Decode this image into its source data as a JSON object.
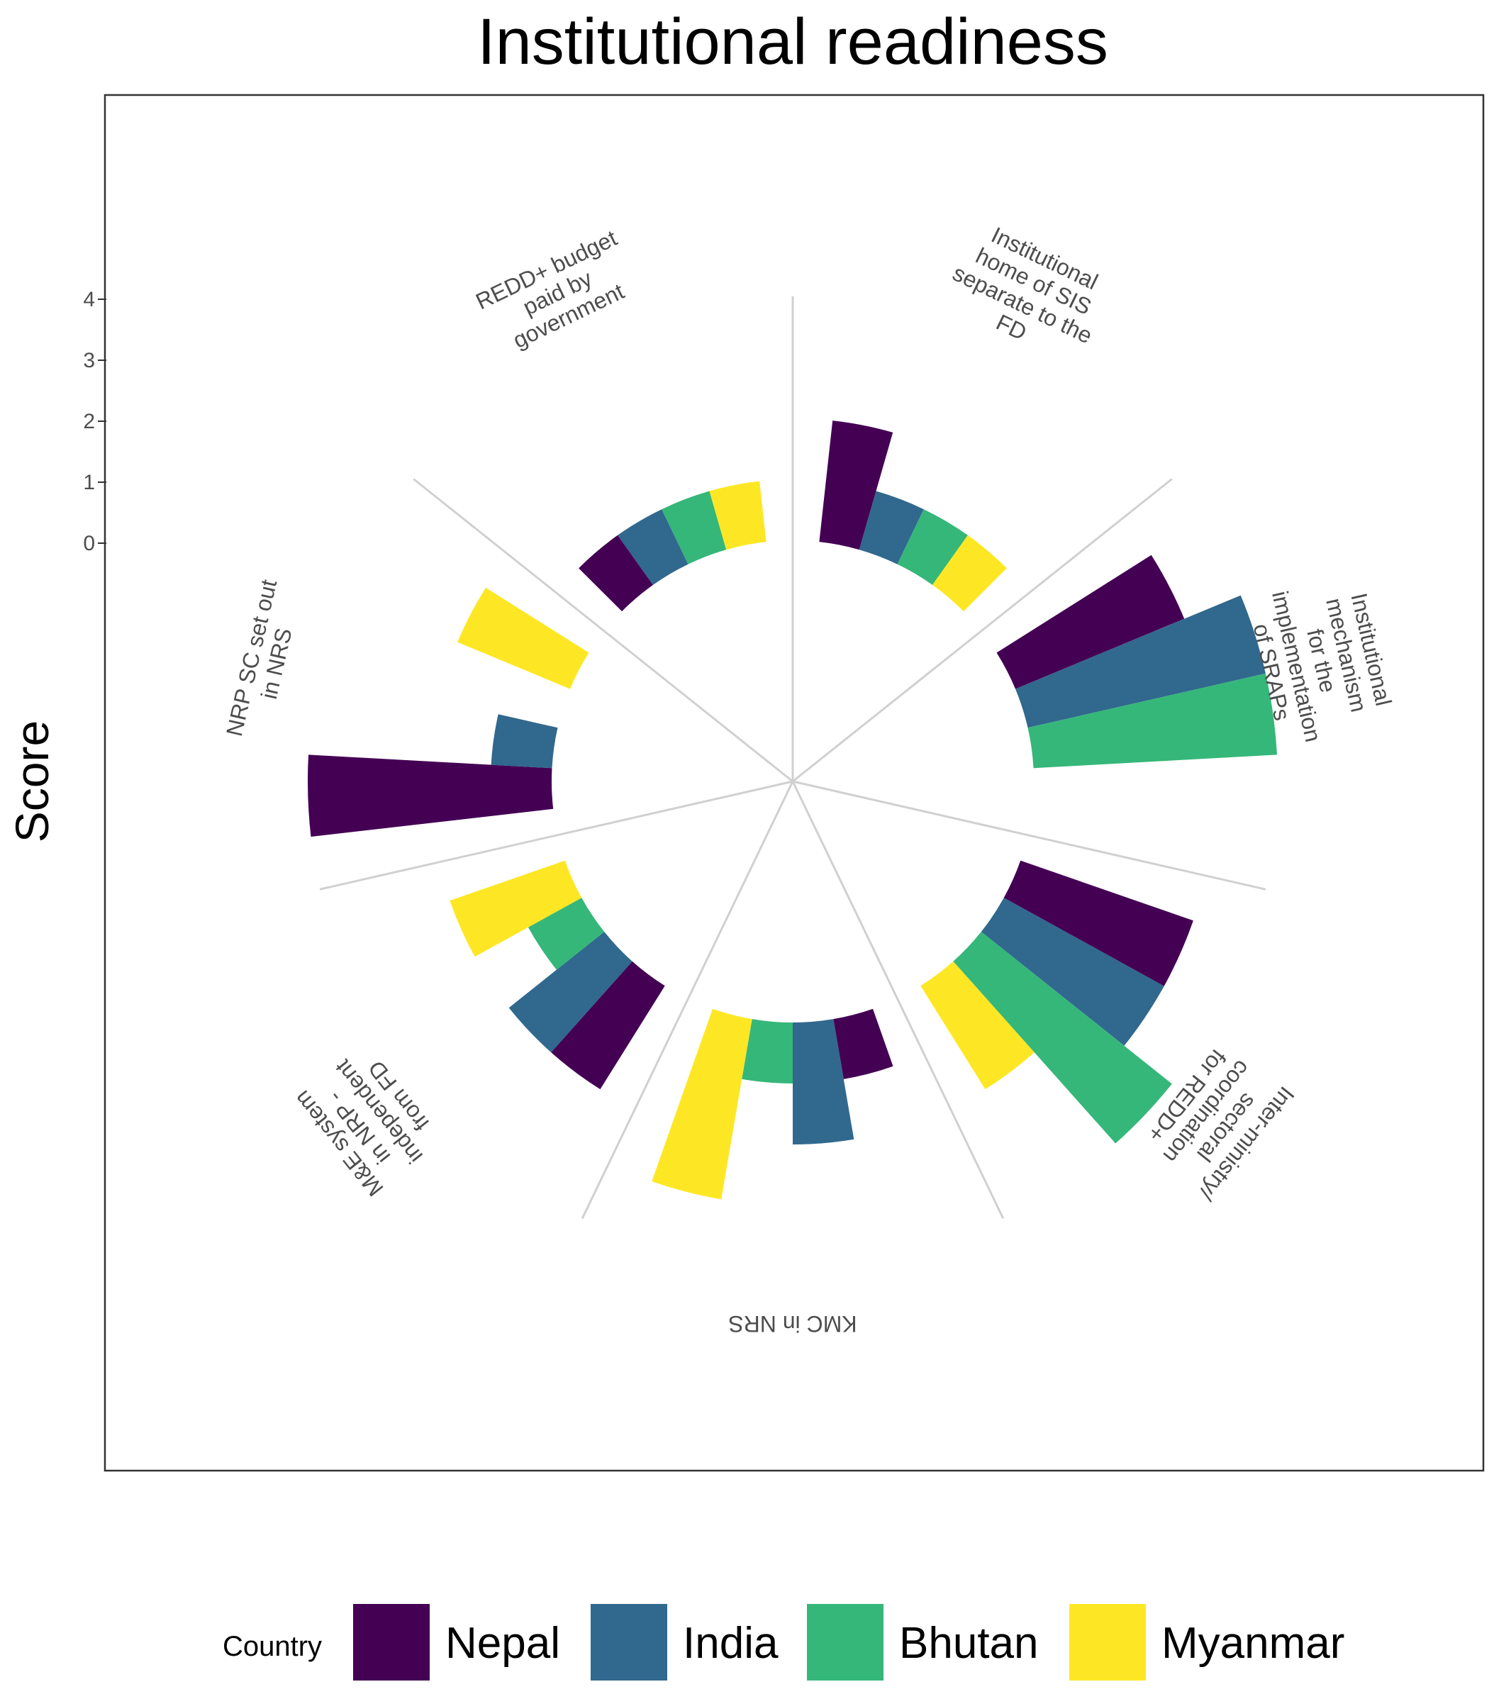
{
  "chart_data": {
    "type": "bar",
    "subtype": "circular-grouped-bar",
    "title": "Institutional readiness",
    "xlabel": "",
    "ylabel": "Score",
    "ylim": [
      0,
      4
    ],
    "yticks": [
      "0",
      "1",
      "2",
      "3",
      "4"
    ],
    "grid": false,
    "legend_title": "Country",
    "legend_position": "bottom",
    "categories": [
      "Institutional home of SIS separate to the FD",
      "Institutional mechanism for the implementation of SRAPs",
      "Inter-ministry/ sectoral coordination for REDD+",
      "KMC in NRS",
      "M&E system in NRP - independent from FD",
      "NRP SC set out in NRS",
      "REDD+ budget paid by government"
    ],
    "category_labels": [
      [
        "Institutional",
        "home of SIS",
        "separate to the",
        "FD"
      ],
      [
        "Institutional",
        "mechanism",
        "for the",
        "implementation",
        "of SRAPs"
      ],
      [
        "Inter-ministry/",
        "sectoral",
        "coordination",
        "for REDD+"
      ],
      [
        "KMC in NRS"
      ],
      [
        "M&E system",
        "in NRP -",
        "independent",
        "from FD"
      ],
      [
        "NRP SC set out",
        "in NRS"
      ],
      [
        "REDD+ budget",
        "paid by",
        "government"
      ]
    ],
    "series": [
      {
        "name": "Nepal",
        "color": "#440154",
        "values": [
          2,
          3,
          3,
          1,
          2,
          4,
          1
        ]
      },
      {
        "name": "India",
        "color": "#31688E",
        "values": [
          1,
          4,
          3,
          2,
          2,
          1,
          1
        ]
      },
      {
        "name": "Bhutan",
        "color": "#35B779",
        "values": [
          1,
          4,
          4,
          1,
          1,
          0,
          1
        ]
      },
      {
        "name": "Myanmar",
        "color": "#FDE725",
        "values": [
          1,
          0,
          2,
          3,
          2,
          2,
          1
        ]
      }
    ]
  }
}
